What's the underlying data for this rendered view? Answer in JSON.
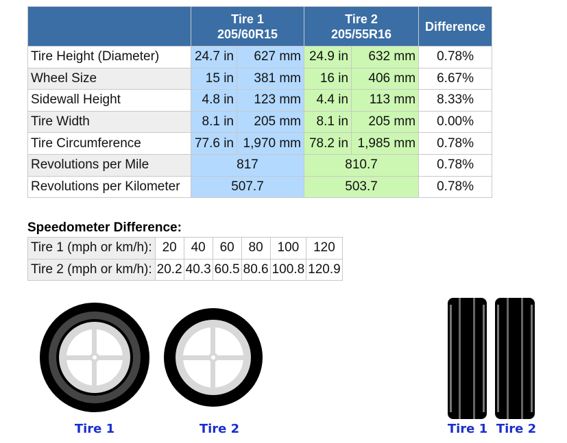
{
  "comparison": {
    "header": {
      "tire1": {
        "name": "Tire 1",
        "size": "205/60R15"
      },
      "tire2": {
        "name": "Tire 2",
        "size": "205/55R16"
      },
      "difference": "Difference"
    },
    "rows": [
      {
        "label": "Tire Height (Diameter)",
        "tire1": [
          "24.7 in",
          "627 mm"
        ],
        "tire2": [
          "24.9 in",
          "632 mm"
        ],
        "difference": "0.78%"
      },
      {
        "label": "Wheel Size",
        "tire1": [
          "15 in",
          "381 mm"
        ],
        "tire2": [
          "16 in",
          "406 mm"
        ],
        "difference": "6.67%"
      },
      {
        "label": "Sidewall Height",
        "tire1": [
          "4.8 in",
          "123 mm"
        ],
        "tire2": [
          "4.4 in",
          "113 mm"
        ],
        "difference": "8.33%"
      },
      {
        "label": "Tire Width",
        "tire1": [
          "8.1 in",
          "205 mm"
        ],
        "tire2": [
          "8.1 in",
          "205 mm"
        ],
        "difference": "0.00%"
      },
      {
        "label": "Tire Circumference",
        "tire1": [
          "77.6 in",
          "1,970 mm"
        ],
        "tire2": [
          "78.2 in",
          "1,985 mm"
        ],
        "difference": "0.78%"
      },
      {
        "label": "Revolutions per Mile",
        "tire1": [
          "817"
        ],
        "tire2": [
          "810.7"
        ],
        "difference": "0.78%"
      },
      {
        "label": "Revolutions per Kilometer",
        "tire1": [
          "507.7"
        ],
        "tire2": [
          "503.7"
        ],
        "difference": "0.78%"
      }
    ]
  },
  "speedometer": {
    "title": "Speedometer Difference:",
    "rows": [
      {
        "label": "Tire 1 (mph or km/h):",
        "values": [
          "20",
          "40",
          "60",
          "80",
          "100",
          "120"
        ]
      },
      {
        "label": "Tire 2 (mph or km/h):",
        "values": [
          "20.2",
          "40.3",
          "60.5",
          "80.6",
          "100.8",
          "120.9"
        ]
      }
    ]
  },
  "diagrams": {
    "front_labels": [
      "Tire 1",
      "Tire 2"
    ],
    "side_labels": [
      "Tire 1",
      "Tire 2"
    ]
  }
}
